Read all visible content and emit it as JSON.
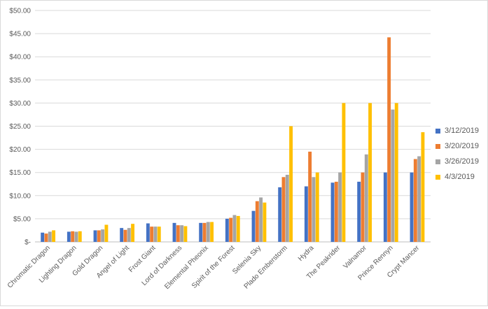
{
  "chart_data": {
    "type": "bar",
    "title": "",
    "xlabel": "",
    "ylabel": "",
    "ylim": [
      0,
      50
    ],
    "y_tick_step": 5,
    "y_tick_labels": [
      "$-",
      "$5.00",
      "$10.00",
      "$15.00",
      "$20.00",
      "$25.00",
      "$30.00",
      "$35.00",
      "$40.00",
      "$45.00",
      "$50.00"
    ],
    "grid": "horizontal",
    "legend_position": "right",
    "categories": [
      "Chromatic Dragon",
      "Lighting Dragon",
      "Gold Dragon",
      "Angel of Light",
      "Frost Giant",
      "Lord of Darkness",
      "Elemental Pheonix",
      "Spirit of the Forest",
      "Selenia Sky",
      "Plado Emberstorm",
      "Hydra",
      "The Peakrider",
      "Valnamor",
      "Prince Rennyn",
      "Crypt Mancer"
    ],
    "series": [
      {
        "name": "3/12/2019",
        "color": "#4472c4",
        "values": [
          2.0,
          2.2,
          2.5,
          3.0,
          4.0,
          4.1,
          4.1,
          5.0,
          6.7,
          11.8,
          12.0,
          12.8,
          13.0,
          15.0,
          15.0
        ]
      },
      {
        "name": "3/20/2019",
        "color": "#ed7d31",
        "values": [
          1.8,
          2.3,
          2.5,
          2.6,
          3.3,
          3.6,
          4.1,
          5.2,
          8.8,
          14.0,
          19.5,
          13.0,
          15.0,
          44.2,
          17.9
        ]
      },
      {
        "name": "3/26/2019",
        "color": "#a5a5a5",
        "values": [
          2.2,
          2.2,
          2.7,
          3.0,
          3.3,
          3.6,
          4.3,
          5.8,
          9.6,
          14.5,
          14.0,
          15.0,
          18.9,
          28.6,
          18.5
        ]
      },
      {
        "name": "4/3/2019",
        "color": "#ffc000",
        "values": [
          2.5,
          2.3,
          3.7,
          3.9,
          3.3,
          3.4,
          4.3,
          5.6,
          8.5,
          25.0,
          15.0,
          30.0,
          30.0,
          30.0,
          23.7
        ]
      }
    ]
  }
}
